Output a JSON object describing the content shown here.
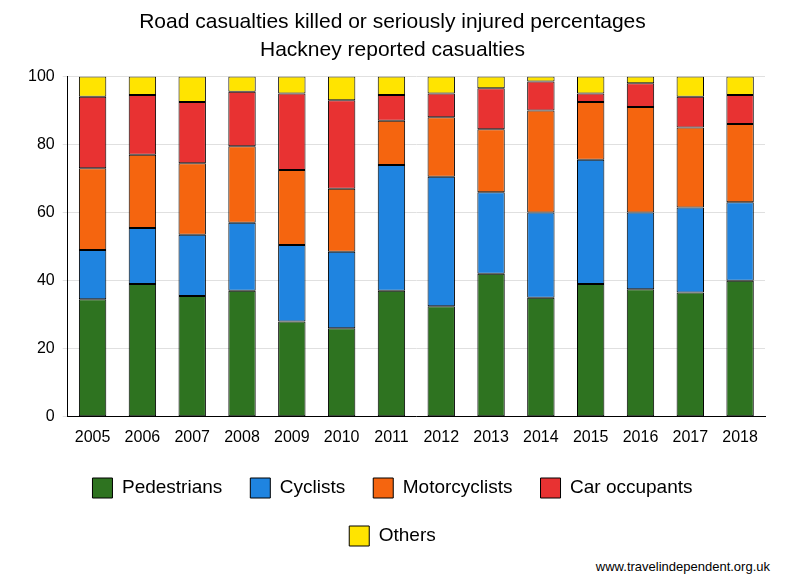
{
  "chart_data": {
    "type": "bar",
    "stacked": true,
    "title": "Road casualties killed or seriously injured percentages",
    "subtitle": "Hackney reported casualties",
    "source": "www.travelindependent.org.uk",
    "categories": [
      "2005",
      "2006",
      "2007",
      "2008",
      "2009",
      "2010",
      "2011",
      "2012",
      "2013",
      "2014",
      "2015",
      "2016",
      "2017",
      "2018"
    ],
    "series": [
      {
        "name": "Pedestrians",
        "color": "#2e7320",
        "values": [
          34.5,
          39,
          35.5,
          37,
          28,
          26,
          37,
          32.5,
          42,
          35,
          39,
          37.5,
          36.5,
          40
        ]
      },
      {
        "name": "Cyclists",
        "color": "#1f84e0",
        "values": [
          14.5,
          16.5,
          18,
          20,
          22.5,
          22.5,
          37,
          38,
          24,
          25,
          36.5,
          22.5,
          25,
          23
        ]
      },
      {
        "name": "Motorcyclists",
        "color": "#f5650f",
        "values": [
          24,
          21.5,
          21,
          22.5,
          22,
          18.5,
          13,
          17.5,
          18.5,
          30,
          17,
          31,
          23.5,
          23
        ]
      },
      {
        "name": "Car occupants",
        "color": "#e83232",
        "values": [
          21,
          17.5,
          18,
          16,
          22.5,
          26,
          7.5,
          7,
          12,
          8.5,
          2.5,
          7,
          9,
          8.5
        ]
      },
      {
        "name": "Others",
        "color": "#ffe400",
        "values": [
          6,
          5.5,
          7.5,
          4.5,
          5,
          7,
          5.5,
          5,
          3.5,
          1.5,
          5,
          2,
          6,
          5.5
        ]
      }
    ],
    "ylim": [
      0,
      100
    ],
    "yticks": [
      0,
      20,
      40,
      60,
      80,
      100
    ],
    "grid": true,
    "legend": "bottom"
  }
}
